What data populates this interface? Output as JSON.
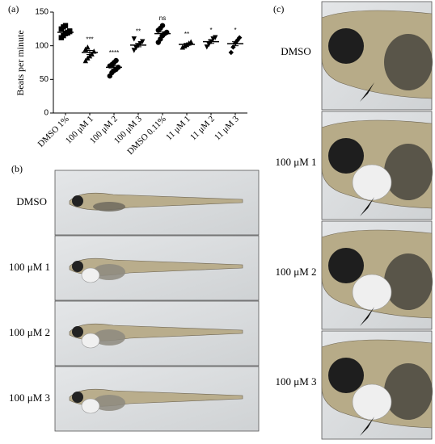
{
  "chart_data": {
    "type": "dot",
    "panel_label": "(a)",
    "ylabel": "Beats per minute",
    "categories": [
      "DMSO 1%",
      "100 μM 1",
      "100 μM 2",
      "100 μM 3",
      "DMSO 0.11%",
      "11 μM 1",
      "11 μM 2",
      "11 μM 3"
    ],
    "values": [
      120,
      90,
      68,
      101,
      118,
      102,
      106,
      103
    ],
    "errors": [
      2,
      3,
      2.5,
      2.5,
      2.5,
      1.5,
      2.5,
      3
    ],
    "points": [
      [
        112,
        115,
        118,
        120,
        122,
        125,
        128,
        130,
        119,
        121
      ],
      [
        78,
        82,
        85,
        88,
        92,
        95,
        98
      ],
      [
        55,
        60,
        63,
        65,
        68,
        70,
        72,
        75,
        78
      ],
      [
        93,
        97,
        100,
        103,
        106,
        110
      ],
      [
        105,
        110,
        115,
        118,
        120,
        123,
        126,
        130
      ],
      [
        98,
        100,
        102,
        104,
        106
      ],
      [
        98,
        102,
        106,
        110,
        112
      ],
      [
        90,
        98,
        104,
        108,
        112
      ]
    ],
    "markers": [
      "square",
      "triangle",
      "circle",
      "down-triangle",
      "circle",
      "triangle",
      "down-triangle",
      "diamond"
    ],
    "annotations": [
      null,
      "***",
      "****",
      "**",
      "ns",
      "**",
      "*",
      "*"
    ],
    "color": "#000000",
    "ylim": [
      0,
      150
    ],
    "yticks": [
      0,
      50,
      100,
      150
    ]
  },
  "panel_b": {
    "label": "(b)",
    "rows": [
      "DMSO",
      "100 μM 1",
      "100 μM 2",
      "100 μM 3"
    ]
  },
  "panel_c": {
    "label": "(c)",
    "rows": [
      "DMSO",
      "100 μM 1",
      "100 μM 2",
      "100 μM 3"
    ]
  }
}
